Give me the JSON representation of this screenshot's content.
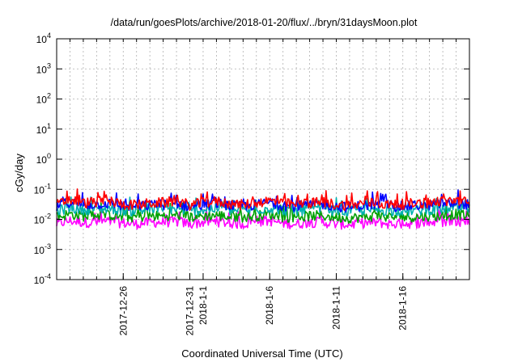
{
  "chart_data": {
    "type": "line",
    "title": "/data/run/goesPlots/archive/2018-01-20/flux/../bryn/31daysMoon.plot",
    "xlabel": "Coordinated Universal Time (UTC)",
    "ylabel": "cGy/day",
    "yscale": "log",
    "ylim": [
      0.0001,
      10000
    ],
    "yticks": [
      {
        "value": 0.0001,
        "base": "10",
        "exp": "-4"
      },
      {
        "value": 0.001,
        "base": "10",
        "exp": "-3"
      },
      {
        "value": 0.01,
        "base": "10",
        "exp": "-2"
      },
      {
        "value": 0.1,
        "base": "10",
        "exp": "-1"
      },
      {
        "value": 1,
        "base": "10",
        "exp": "0"
      },
      {
        "value": 10,
        "base": "10",
        "exp": "1"
      },
      {
        "value": 100,
        "base": "10",
        "exp": "2"
      },
      {
        "value": 1000,
        "base": "10",
        "exp": "3"
      },
      {
        "value": 10000,
        "base": "10",
        "exp": "4"
      }
    ],
    "xlim": [
      "2017-12-21",
      "2018-01-21"
    ],
    "xticks": [
      {
        "date": "2017-12-26",
        "label": "2017-12-26"
      },
      {
        "date": "2017-12-31",
        "label": "2017-12-31"
      },
      {
        "date": "2018-01-01",
        "label": "2018-1-1"
      },
      {
        "date": "2018-01-06",
        "label": "2018-1-6"
      },
      {
        "date": "2018-01-11",
        "label": "2018-1-11"
      },
      {
        "date": "2018-01-16",
        "label": "2018-1-16"
      }
    ],
    "grid": true,
    "series": [
      {
        "color": "#ff0000",
        "values": [
          0.03,
          0.045,
          0.035,
          0.038,
          0.04,
          0.032,
          0.03,
          0.034,
          0.036,
          0.04,
          0.03,
          0.035,
          0.04,
          0.033,
          0.03,
          0.036,
          0.042,
          0.034,
          0.031,
          0.035,
          0.037,
          0.031,
          0.029,
          0.034,
          0.036,
          0.03,
          0.032,
          0.034,
          0.035,
          0.039,
          0.044,
          0.035
        ]
      },
      {
        "color": "#0000ff",
        "values": [
          0.026,
          0.038,
          0.03,
          0.032,
          0.034,
          0.028,
          0.026,
          0.03,
          0.031,
          0.034,
          0.026,
          0.03,
          0.034,
          0.029,
          0.026,
          0.031,
          0.036,
          0.029,
          0.027,
          0.03,
          0.032,
          0.027,
          0.025,
          0.029,
          0.031,
          0.026,
          0.027,
          0.029,
          0.03,
          0.033,
          0.036,
          0.03
        ]
      },
      {
        "color": "#00b0b0",
        "values": [
          0.019,
          0.024,
          0.021,
          0.022,
          0.023,
          0.02,
          0.019,
          0.021,
          0.022,
          0.023,
          0.019,
          0.021,
          0.023,
          0.02,
          0.019,
          0.021,
          0.024,
          0.02,
          0.019,
          0.021,
          0.022,
          0.019,
          0.018,
          0.02,
          0.021,
          0.019,
          0.019,
          0.02,
          0.021,
          0.022,
          0.024,
          0.021
        ]
      },
      {
        "color": "#00a000",
        "values": [
          0.012,
          0.015,
          0.013,
          0.014,
          0.014,
          0.012,
          0.012,
          0.013,
          0.013,
          0.014,
          0.012,
          0.013,
          0.014,
          0.012,
          0.012,
          0.013,
          0.015,
          0.012,
          0.012,
          0.013,
          0.013,
          0.012,
          0.011,
          0.012,
          0.013,
          0.012,
          0.012,
          0.012,
          0.013,
          0.013,
          0.015,
          0.013
        ]
      },
      {
        "color": "#ff00ff",
        "values": [
          0.007,
          0.009,
          0.008,
          0.008,
          0.0085,
          0.0075,
          0.007,
          0.008,
          0.008,
          0.0085,
          0.007,
          0.008,
          0.0085,
          0.0075,
          0.007,
          0.008,
          0.009,
          0.0075,
          0.007,
          0.008,
          0.008,
          0.007,
          0.0068,
          0.0075,
          0.008,
          0.007,
          0.0072,
          0.0075,
          0.008,
          0.0082,
          0.009,
          0.008
        ]
      }
    ]
  }
}
